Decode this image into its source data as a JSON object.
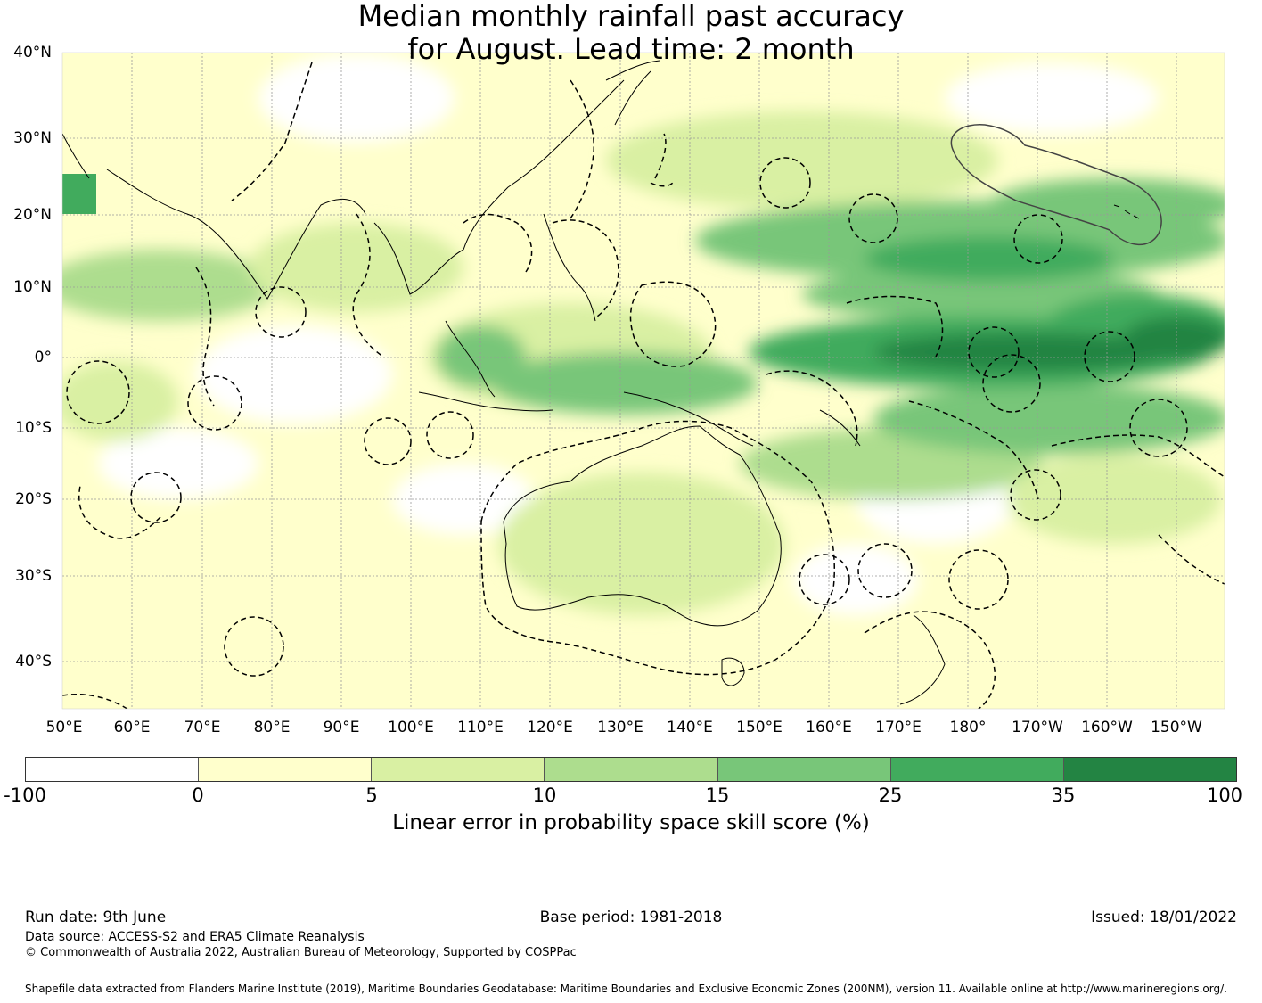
{
  "title_line1": "Median monthly rainfall past accuracy",
  "title_line2": "for August. Lead time: 2 month",
  "map": {
    "lat_labels": [
      "40°N",
      "30°N",
      "20°N",
      "10°N",
      "0°",
      "10°S",
      "20°S",
      "30°S",
      "40°S"
    ],
    "lon_labels": [
      "50°E",
      "60°E",
      "70°E",
      "80°E",
      "90°E",
      "100°E",
      "110°E",
      "120°E",
      "130°E",
      "140°E",
      "150°E",
      "160°E",
      "170°E",
      "180°",
      "170°W",
      "160°W",
      "150°W"
    ]
  },
  "colorbar": {
    "ticks": [
      "-100",
      "0",
      "5",
      "10",
      "15",
      "25",
      "35",
      "100"
    ],
    "colors": [
      "#ffffff",
      "#ffffcc",
      "#d9f0a3",
      "#addd8e",
      "#78c679",
      "#41ab5d",
      "#238443"
    ],
    "label": "Linear error in probability space skill score (%)"
  },
  "footer": {
    "run_date": "Run date: 9th June",
    "base_period": "Base period: 1981-2018",
    "issued": "Issued: 18/01/2022",
    "data_source": "Data source: ACCESS-S2 and ERA5 Climate Reanalysis",
    "copyright": "© Commonwealth of Australia 2022, Australian Bureau of Meteorology, Supported by COSPPac",
    "shapefile": "Shapefile data extracted from Flanders Marine Institute (2019), Maritime Boundaries Geodatabase: Maritime Boundaries and Exclusive Economic Zones (200NM), version 11. Available online at http://www.marineregions.org/."
  }
}
